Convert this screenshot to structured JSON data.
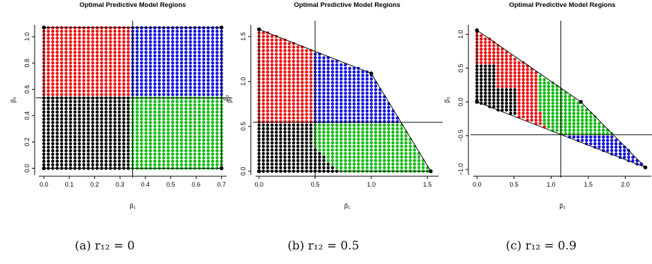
{
  "colors": {
    "black_region": "#000000",
    "red_region": "#ee1111",
    "blue_region": "#1111dd",
    "green_region": "#11bb11"
  },
  "chart_data": [
    {
      "type": "scatter",
      "title": "Optimal Predictive Model Regions",
      "xlabel": "β₁",
      "ylabel": "β₂",
      "xlim": [
        -0.02,
        0.72
      ],
      "ylim": [
        -0.05,
        1.09
      ],
      "xticks": [
        "0.0",
        "0.1",
        "0.2",
        "0.3",
        "0.4",
        "0.5",
        "0.6",
        "0.7"
      ],
      "yticks": [
        "0.0",
        "0.2",
        "0.4",
        "0.6",
        "0.8",
        "1.0"
      ],
      "grid": false,
      "vertices": [
        [
          0,
          0
        ],
        [
          0.7,
          0
        ],
        [
          0.7,
          1.07
        ],
        [
          0,
          1.07
        ]
      ],
      "vline": 0.35,
      "hline": 0.535,
      "hline_label": "β₂",
      "grid_step": [
        0.0175,
        0.0267
      ],
      "caption": "(a)  r₁₂ = 0"
    },
    {
      "type": "scatter",
      "title": "Optimal Predictive Model Regions",
      "xlabel": "β₁",
      "ylabel": "β₂",
      "xlim": [
        -0.03,
        1.6
      ],
      "ylim": [
        -0.04,
        1.63
      ],
      "xticks": [
        "0.0",
        "0.5",
        "1.0",
        "1.5"
      ],
      "yticks": [
        "0.0",
        "0.5",
        "1.0",
        "1.5"
      ],
      "grid": false,
      "vertices": [
        [
          0,
          0
        ],
        [
          1.53,
          0
        ],
        [
          1,
          1.09
        ],
        [
          0,
          1.58
        ]
      ],
      "vline": 0.5,
      "hline": 0.545,
      "grid_step": [
        0.0385,
        0.0395
      ],
      "caption": "(b)  r₁₂ = 0.5"
    },
    {
      "type": "scatter",
      "title": "Optimal Predictive Model Regions",
      "xlabel": "β₁",
      "ylabel": "β₂",
      "xlim": [
        -0.05,
        2.35
      ],
      "ylim": [
        -1.08,
        1.14
      ],
      "xticks": [
        "0.0",
        "0.5",
        "1.0",
        "1.5",
        "2.0"
      ],
      "yticks": [
        "−1.0",
        "−0.5",
        "0.0",
        "0.5",
        "1.0"
      ],
      "grid": false,
      "vertices": [
        [
          0,
          1.06
        ],
        [
          0,
          0
        ],
        [
          2.27,
          -0.97
        ],
        [
          1.4,
          0
        ]
      ],
      "vline": 1.13,
      "hline": -0.485,
      "grid_step": [
        0.0568,
        0.05
      ],
      "caption": "(c)  r₁₂ = 0.9"
    }
  ]
}
